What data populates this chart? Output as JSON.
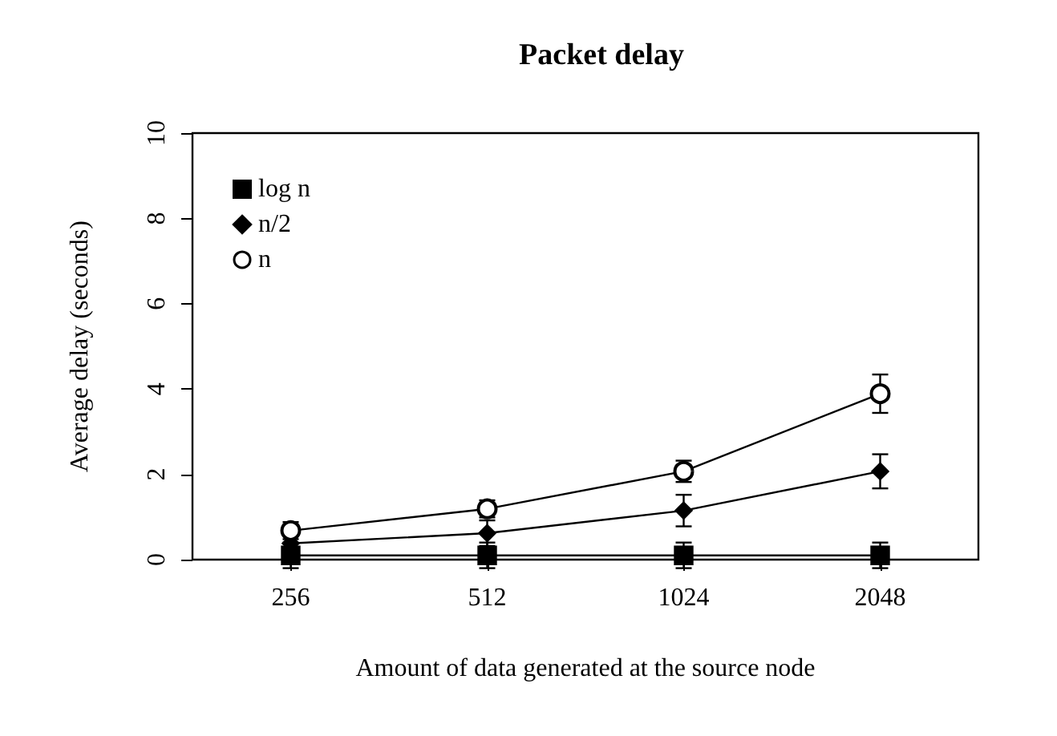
{
  "chart_data": {
    "type": "line",
    "title": "Packet delay",
    "xlabel": "Amount of data generated at the source node",
    "ylabel": "Average delay (seconds)",
    "categories": [
      "256",
      "512",
      "1024",
      "2048"
    ],
    "series": [
      {
        "name": "log n",
        "color": "#000000",
        "marker": "square",
        "values": [
          0.1,
          0.1,
          0.1,
          0.1
        ],
        "errors": [
          0.3,
          0.3,
          0.3,
          0.3
        ]
      },
      {
        "name": "n/2",
        "color": "#000000",
        "marker": "diamond",
        "values": [
          0.38,
          0.62,
          1.15,
          2.07
        ],
        "errors": [
          0.2,
          0.3,
          0.37,
          0.4
        ]
      },
      {
        "name": "n",
        "color": "#000000",
        "marker": "circle",
        "values": [
          0.68,
          1.19,
          2.07,
          3.89
        ],
        "errors": [
          0.2,
          0.2,
          0.25,
          0.45
        ]
      }
    ],
    "ylim": [
      0,
      10
    ],
    "yticks": [
      0,
      2,
      4,
      6,
      8,
      10
    ],
    "grid": false,
    "legend": "top left",
    "line_style": "solid"
  }
}
